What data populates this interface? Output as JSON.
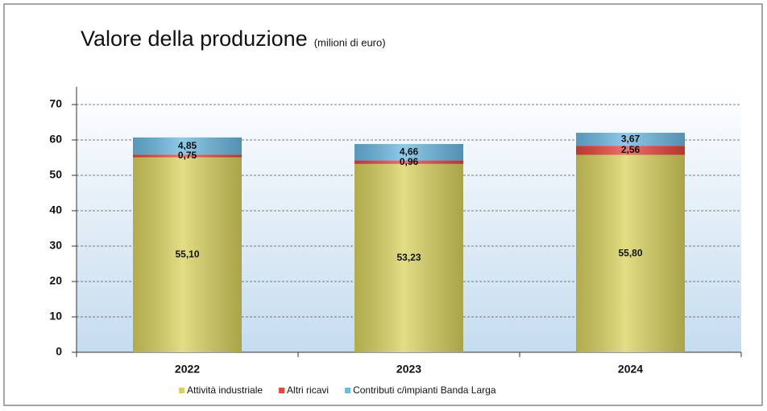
{
  "chart_data": {
    "type": "stacked_bar",
    "title": "Valore della produzione",
    "subtitle": "(milioni di euro)",
    "categories": [
      "2022",
      "2023",
      "2024"
    ],
    "series": [
      {
        "name": "Attività industriale",
        "color": "#d9d25e",
        "values": [
          55.1,
          53.23,
          55.8
        ],
        "value_labels": [
          "55,10",
          "53,23",
          "55,80"
        ]
      },
      {
        "name": "Altri ricavi",
        "color": "#e8443c",
        "values": [
          0.75,
          0.96,
          2.56
        ],
        "value_labels": [
          "0,75",
          "0,96",
          "2,56"
        ]
      },
      {
        "name": "Contributi c/impianti Banda Larga",
        "color": "#6cb9e2",
        "values": [
          4.85,
          4.66,
          3.67
        ],
        "value_labels": [
          "4,85",
          "4,66",
          "3,67"
        ]
      }
    ],
    "ylim": [
      0,
      75
    ],
    "yticks": [
      0,
      10,
      20,
      30,
      40,
      50,
      60,
      70
    ],
    "grid": true,
    "legend": "bottom"
  }
}
